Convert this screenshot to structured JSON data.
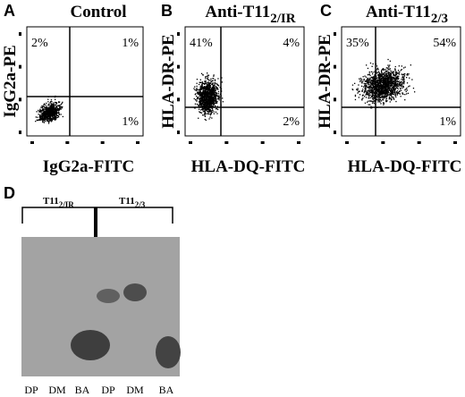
{
  "panels": [
    {
      "letter": "A",
      "title": "Control",
      "quadrants": {
        "upper_left": "2%",
        "upper_right": "1%",
        "lower_right": "1%"
      },
      "y_label": "IgG2a-PE",
      "x_label": "IgG2a-FITC"
    },
    {
      "letter": "B",
      "title": "Anti-T11",
      "title_sub": "2/IR",
      "quadrants": {
        "upper_left": "41%",
        "upper_right": "4%",
        "lower_right": "2%"
      },
      "y_label": "HLA-DR-PE",
      "x_label": "HLA-DQ-FITC"
    },
    {
      "letter": "C",
      "title": "Anti-T11",
      "title_sub": "2/3",
      "quadrants": {
        "upper_left": "35%",
        "upper_right": "54%",
        "lower_right": "1%"
      },
      "y_label": "HLA-DR-PE",
      "x_label": "HLA-DQ-FITC"
    }
  ],
  "gel": {
    "letter": "D",
    "groups": [
      {
        "label": "T11",
        "sub": "2/IR"
      },
      {
        "label": "T11",
        "sub": "2/3"
      }
    ],
    "lanes": [
      "DP",
      "DM",
      "BA",
      "DP",
      "DM",
      "BA"
    ]
  }
}
